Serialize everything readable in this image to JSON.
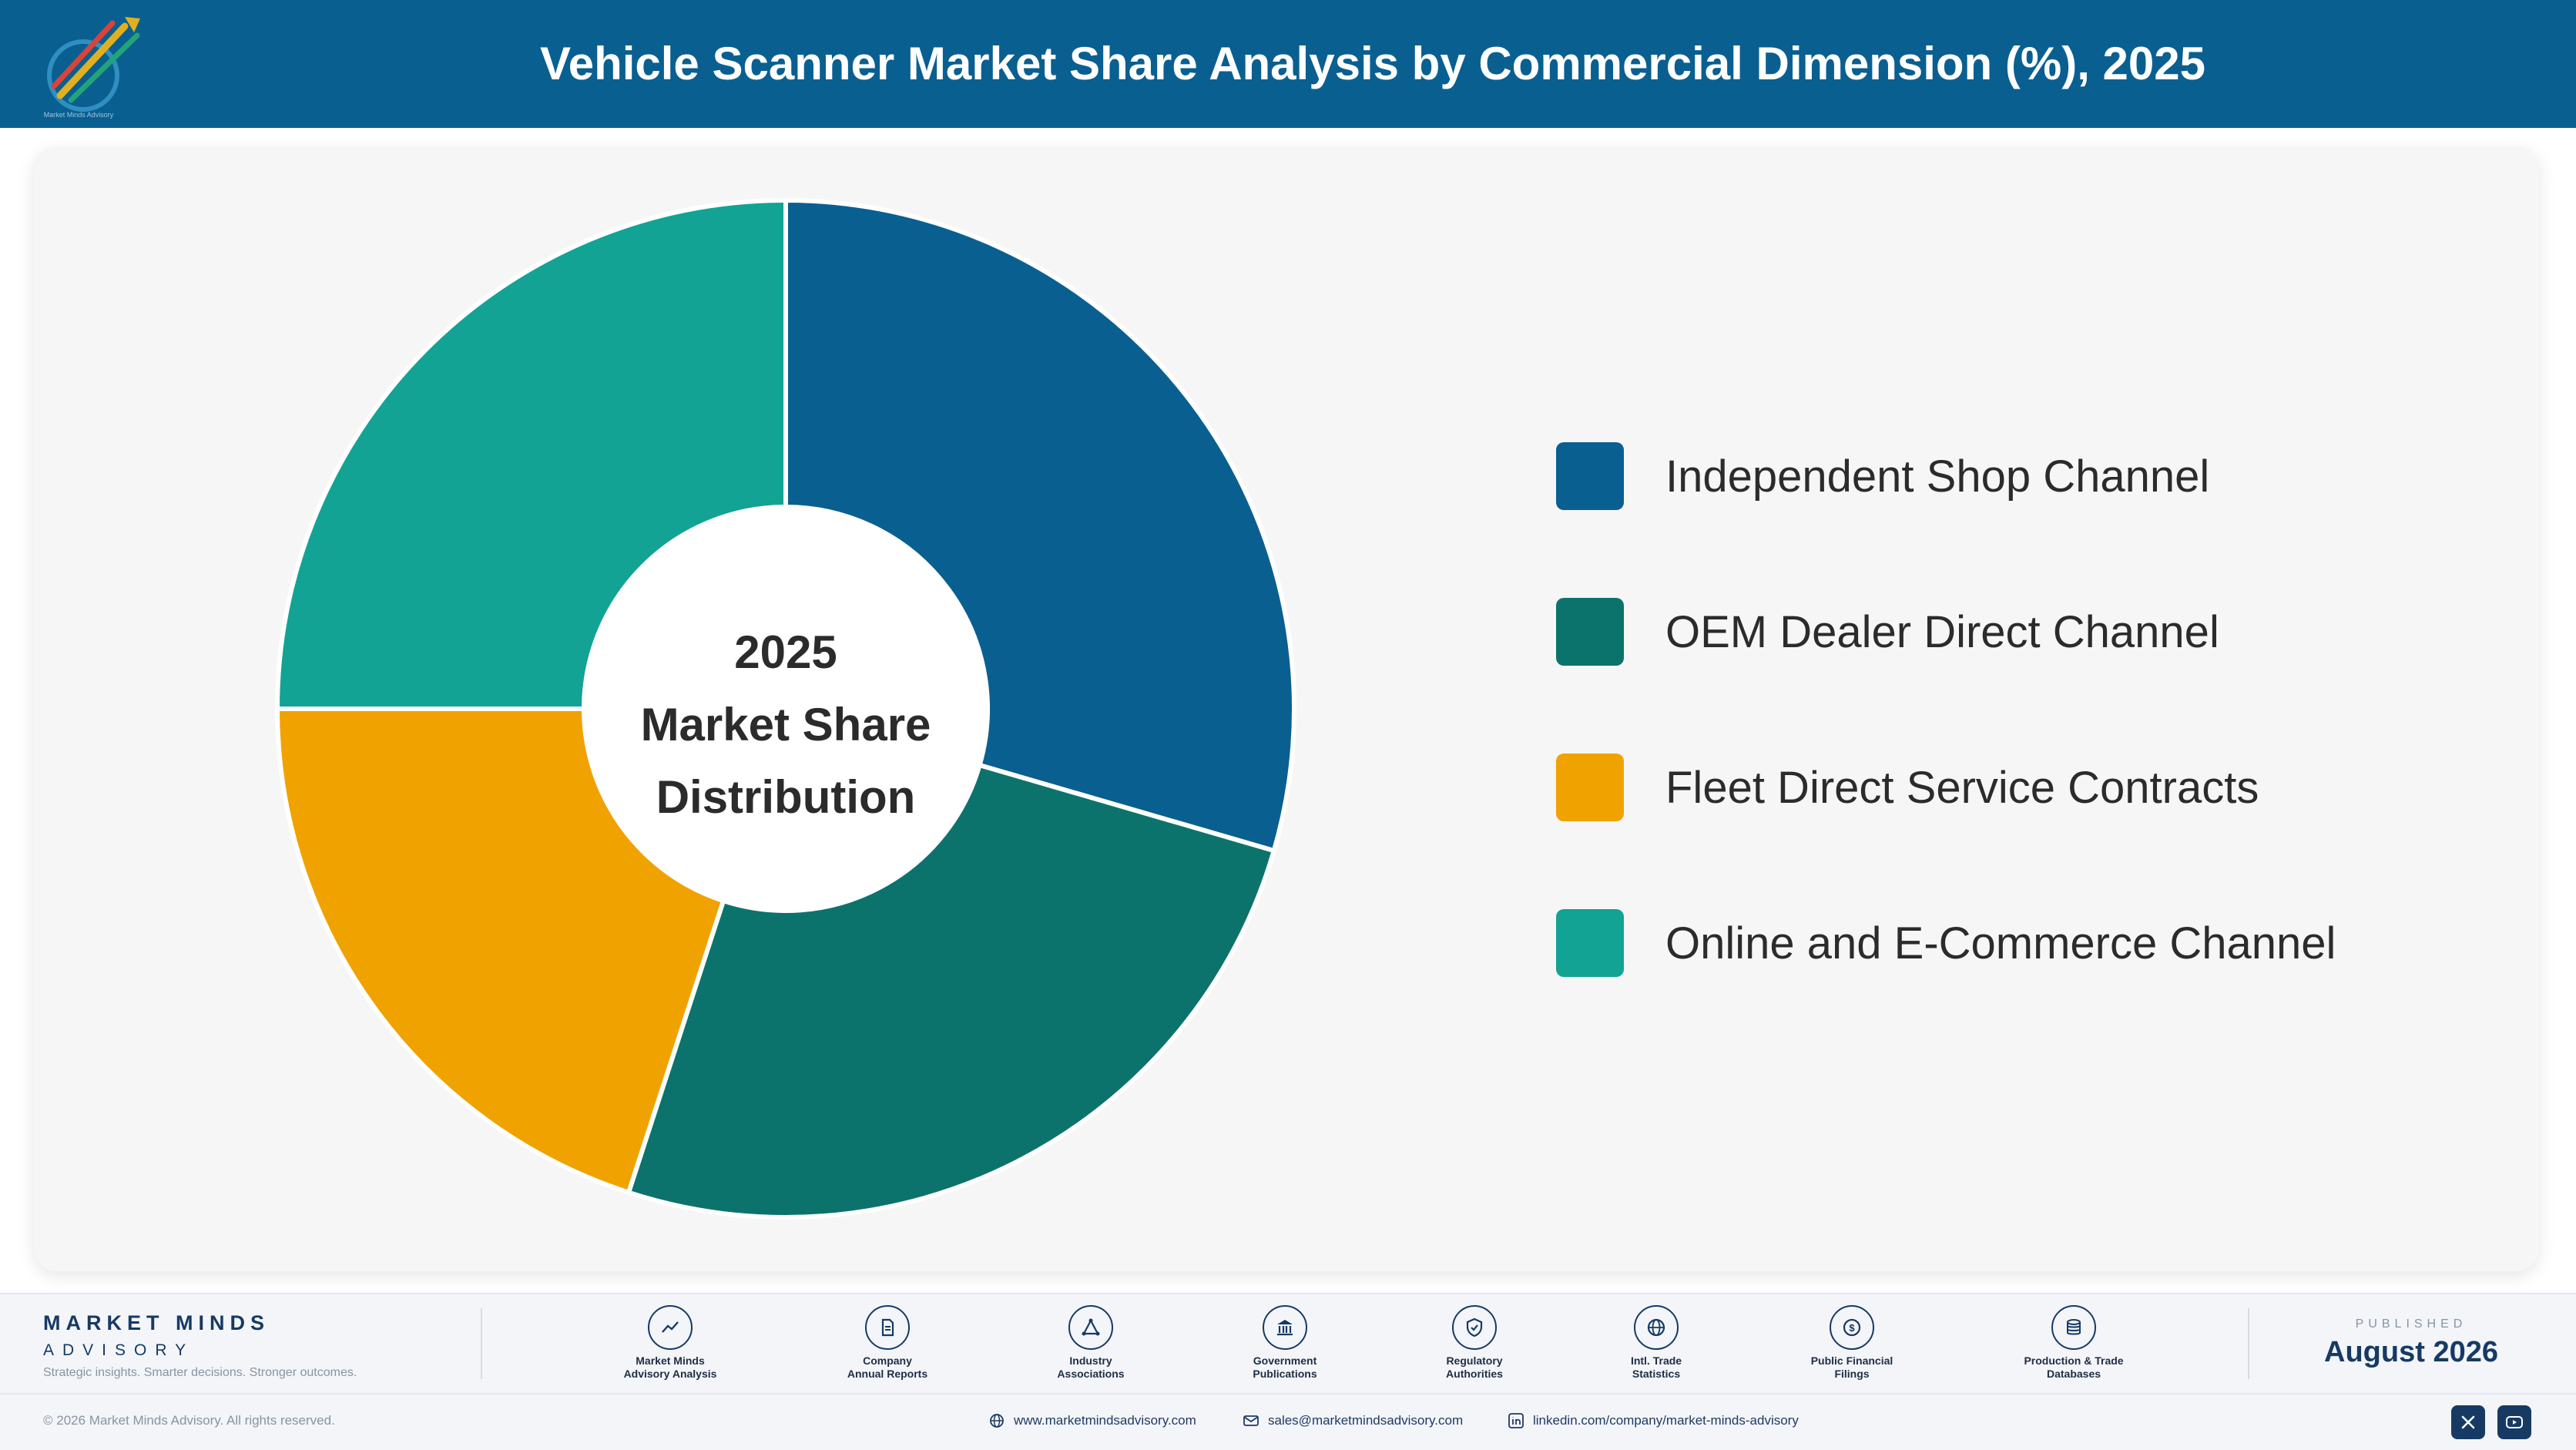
{
  "header": {
    "title": "Vehicle Scanner Market Share Analysis by Commercial Dimension (%), 2025"
  },
  "chart_data": {
    "type": "pie",
    "title": "Vehicle Scanner Market Share Analysis by Commercial Dimension (%), 2025",
    "center_label": [
      "2025",
      "Market Share",
      "Distribution"
    ],
    "categories": [
      "Independent Shop Channel",
      "OEM Dealer Direct Channel",
      "Fleet Direct Service Contracts",
      "Online and E-Commerce Channel"
    ],
    "values": [
      29.5,
      25.5,
      20.0,
      25.0
    ],
    "colors": [
      "#0a5f91",
      "#0c736c",
      "#f0a200",
      "#12a394"
    ],
    "legend_position": "right"
  },
  "footer": {
    "brand_name": "MARKET MINDS",
    "brand_sub": "ADVISORY",
    "tagline": "Strategic insights. Smarter decisions. Stronger outcomes.",
    "sources": [
      {
        "line1": "Market Minds",
        "line2": "Advisory Analysis",
        "icon": "chart-line-icon"
      },
      {
        "line1": "Company",
        "line2": "Annual Reports",
        "icon": "document-icon"
      },
      {
        "line1": "Industry",
        "line2": "Associations",
        "icon": "network-icon"
      },
      {
        "line1": "Government",
        "line2": "Publications",
        "icon": "government-building-icon"
      },
      {
        "line1": "Regulatory",
        "line2": "Authorities",
        "icon": "shield-check-icon"
      },
      {
        "line1": "Intl. Trade",
        "line2": "Statistics",
        "icon": "globe-icon"
      },
      {
        "line1": "Public Financial",
        "line2": "Filings",
        "icon": "dollar-coin-icon"
      },
      {
        "line1": "Production & Trade",
        "line2": "Databases",
        "icon": "database-icon"
      }
    ],
    "published_label": "PUBLISHED",
    "published_date": "August 2026",
    "copyright": "© 2026 Market Minds Advisory. All rights reserved.",
    "website": "www.marketmindsadvisory.com",
    "email": "sales@marketmindsadvisory.com",
    "linkedin": "linkedin.com/company/market-minds-advisory"
  }
}
